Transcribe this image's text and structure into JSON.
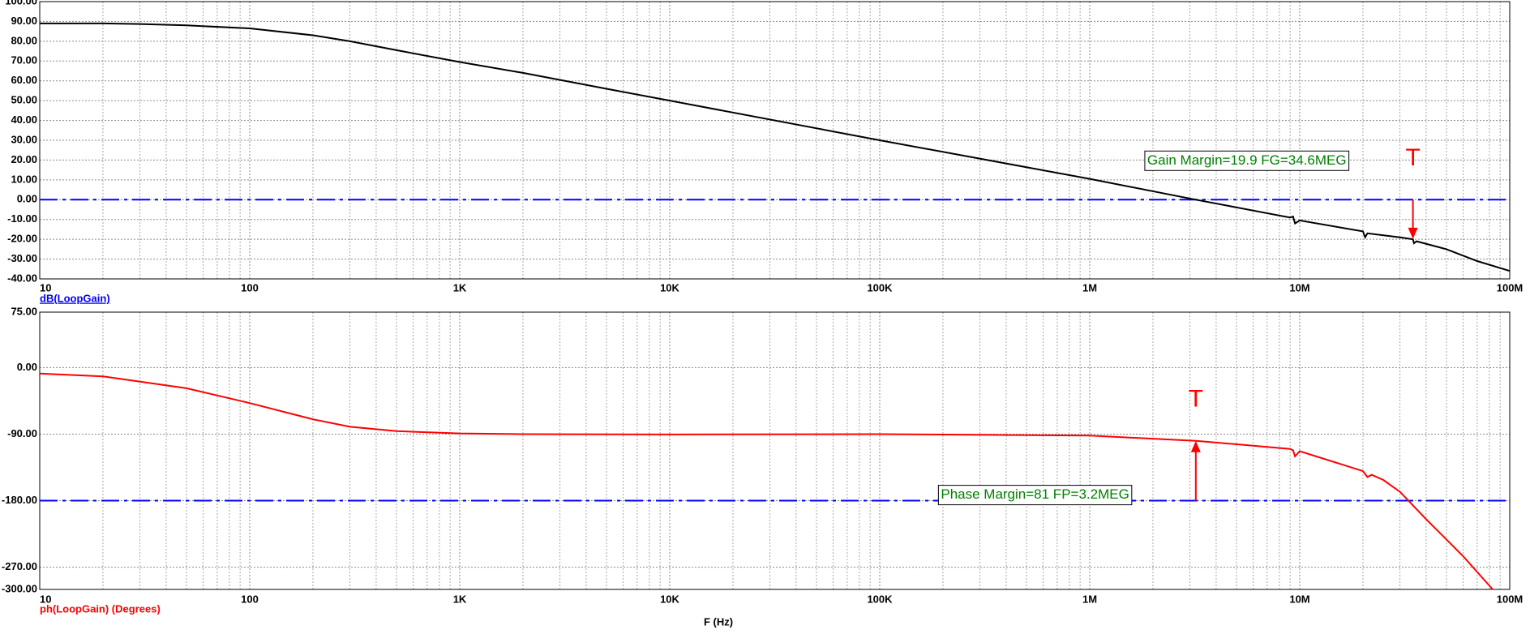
{
  "chart_data": [
    {
      "type": "line",
      "log_x": true,
      "grid": true,
      "minor_grid": true,
      "xlim": [
        10,
        100000000
      ],
      "xticks": [
        10,
        100,
        {
          "value": 1000,
          "label": "1K"
        },
        {
          "value": 10000,
          "label": "10K"
        },
        {
          "value": 100000,
          "label": "100K"
        },
        {
          "value": 1000000,
          "label": "1M"
        },
        {
          "value": 10000000,
          "label": "10M"
        },
        {
          "value": 100000000,
          "label": "100M"
        }
      ],
      "ylim": [
        -40,
        100
      ],
      "yticks": [
        {
          "value": -40,
          "label": "-40.00"
        },
        {
          "value": -30,
          "label": "-30.00"
        },
        {
          "value": -20,
          "label": "-20.00"
        },
        {
          "value": -10,
          "label": "-10.00"
        },
        {
          "value": 0,
          "label": "0.00"
        },
        {
          "value": 10,
          "label": "10.00"
        },
        {
          "value": 20,
          "label": "20.00"
        },
        {
          "value": 30,
          "label": "30.00"
        },
        {
          "value": 40,
          "label": "40.00"
        },
        {
          "value": 50,
          "label": "50.00"
        },
        {
          "value": 60,
          "label": "60.00"
        },
        {
          "value": 70,
          "label": "70.00"
        },
        {
          "value": 80,
          "label": "80.00"
        },
        {
          "value": 90,
          "label": "90.00"
        },
        {
          "value": 100,
          "label": "100.00"
        }
      ],
      "x": [
        10,
        20,
        30,
        50,
        100,
        200,
        300,
        500,
        1000,
        2000,
        5000,
        10000,
        100000,
        1000000,
        3200000,
        9000000,
        9300000,
        9500000,
        10000000,
        20000000,
        20500000,
        21000000,
        30000000,
        34600000,
        35000000,
        36000000,
        50000000,
        70000000,
        100000000
      ],
      "series": [
        {
          "name": "dB(LoopGain)",
          "color": "#000000",
          "values": [
            89,
            89,
            88.7,
            88,
            86.5,
            83,
            80,
            75.5,
            69.5,
            64,
            56,
            50,
            30,
            10.5,
            0,
            -9,
            -8.5,
            -12,
            -10.5,
            -16,
            -19,
            -17,
            -19,
            -20,
            -22,
            -21,
            -25,
            -31,
            -36
          ]
        }
      ],
      "reference_lines": [
        {
          "value": 0,
          "color": "#0000ff"
        }
      ],
      "annotations": [
        {
          "text": "Gain Margin=19.9 FG=34.6MEG",
          "arrow_label": "T",
          "arrow_x": 34600000,
          "arrow_from": 0,
          "arrow_to": -19.9
        }
      ]
    },
    {
      "type": "line",
      "log_x": true,
      "grid": true,
      "minor_grid": true,
      "xlim": [
        10,
        100000000
      ],
      "xticks": [
        10,
        100,
        {
          "value": 1000,
          "label": "1K"
        },
        {
          "value": 10000,
          "label": "10K"
        },
        {
          "value": 100000,
          "label": "100K"
        },
        {
          "value": 1000000,
          "label": "1M"
        },
        {
          "value": 10000000,
          "label": "10M"
        },
        {
          "value": 100000000,
          "label": "100M"
        }
      ],
      "ylim": [
        -300,
        75
      ],
      "yticks": [
        {
          "value": -300,
          "label": "-300.00"
        },
        {
          "value": -270,
          "label": "-270.00"
        },
        {
          "value": -180,
          "label": "-180.00"
        },
        {
          "value": -90,
          "label": "-90.00"
        },
        {
          "value": 0,
          "label": "0.00"
        },
        {
          "value": 75,
          "label": "75.00"
        }
      ],
      "x_label": "F (Hz)",
      "x": [
        10,
        20,
        50,
        100,
        200,
        300,
        500,
        1000,
        2000,
        10000,
        100000,
        1000000,
        3200000,
        9000000,
        9300000,
        9500000,
        10000000,
        20000000,
        21000000,
        22000000,
        25000000,
        30000000,
        40000000,
        60000000,
        83000000
      ],
      "series": [
        {
          "name": "ph(LoopGain) (Degrees)",
          "color": "#ff0000",
          "values": [
            -8,
            -12,
            -28,
            -48,
            -70,
            -80,
            -86,
            -89,
            -90,
            -90.5,
            -90,
            -92,
            -99,
            -110,
            -112,
            -120,
            -113,
            -140,
            -148,
            -145,
            -152,
            -168,
            -205,
            -255,
            -300
          ]
        }
      ],
      "reference_lines": [
        {
          "value": -180,
          "color": "#0000ff"
        }
      ],
      "annotations": [
        {
          "text": "Phase Margin=81 FP=3.2MEG",
          "arrow_label": "T",
          "arrow_x": 3200000,
          "arrow_from": -180,
          "arrow_to": -99
        }
      ]
    }
  ]
}
